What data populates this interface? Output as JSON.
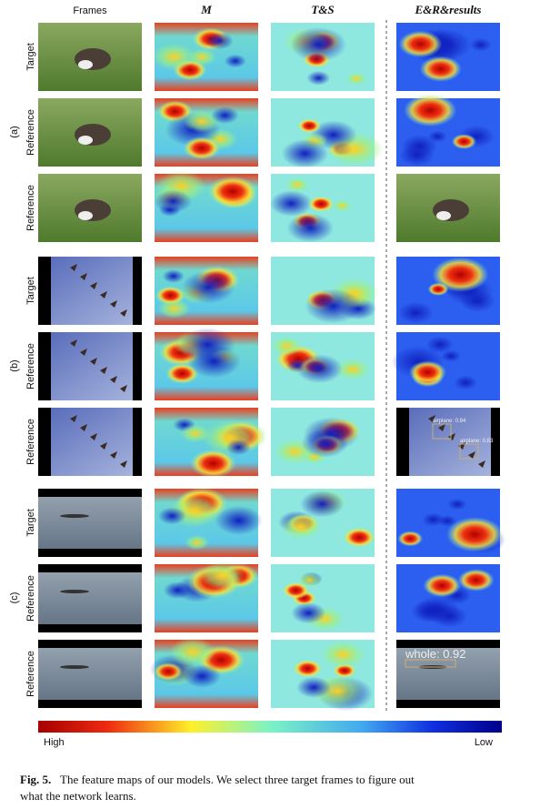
{
  "header": {
    "columns": [
      "Frames",
      "M",
      "T&S",
      "E&R&results"
    ]
  },
  "groups": [
    {
      "label": "(a)",
      "rows": [
        "Target",
        "Reference",
        "Reference"
      ]
    },
    {
      "label": "(b)",
      "rows": [
        "Target",
        "Reference",
        "Reference"
      ],
      "detections": [
        "airplane: 0.84",
        "airplane: 0.83"
      ]
    },
    {
      "label": "(c)",
      "rows": [
        "Target",
        "Reference",
        "Reference"
      ],
      "detections": [
        "whole: 0.92"
      ]
    }
  ],
  "colorbar": {
    "high": "High",
    "low": "Low"
  },
  "caption": {
    "label": "Fig. 5.",
    "text": "The feature maps of our models. We select three target frames to figure out what the network learns."
  }
}
